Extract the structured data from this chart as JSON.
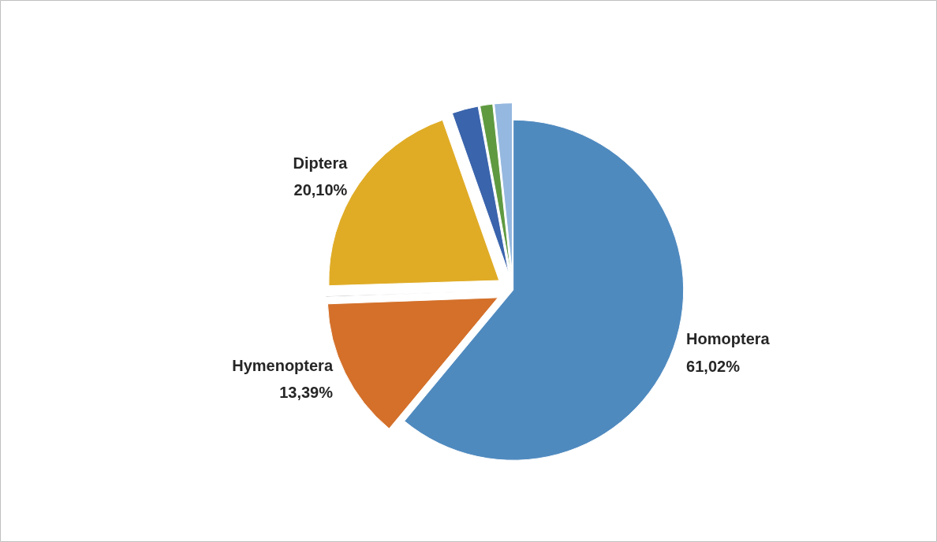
{
  "chart_data": {
    "type": "pie",
    "categories": [
      "Homoptera",
      "Hymenoptera",
      null,
      "Diptera",
      null,
      null,
      null
    ],
    "values": [
      61.02,
      13.39,
      0.1,
      20.1,
      2.5,
      1.2,
      1.69
    ],
    "value_labels": [
      "61,02%",
      "13,39%",
      null,
      "20,10%",
      null,
      null,
      null
    ],
    "colors": [
      "#4f8abf",
      "#d4702a",
      "#a5a5a5",
      "#e0ac26",
      "#3a64ac",
      "#5f9a41",
      "#95b8e0"
    ]
  }
}
